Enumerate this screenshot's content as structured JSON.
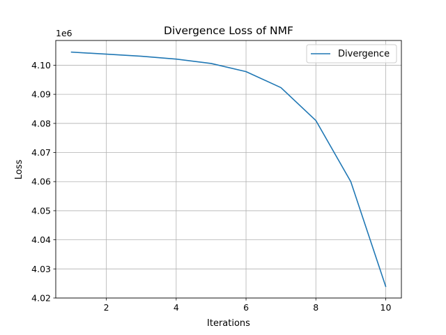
{
  "chart_data": {
    "type": "line",
    "title": "Divergence Loss of NMF",
    "xlabel": "Iterations",
    "ylabel": "Loss",
    "y_offset_label": "1e6",
    "y_scale_factor": 1000000,
    "x": [
      1,
      2,
      3,
      4,
      5,
      6,
      7,
      8,
      9,
      10
    ],
    "series": [
      {
        "name": "Divergence",
        "color": "#1f77b4",
        "values": [
          4104500,
          4103800,
          4103100,
          4102100,
          4100600,
          4097800,
          4092300,
          4081000,
          4060000,
          4024000
        ]
      }
    ],
    "xlim": [
      0.55,
      10.45
    ],
    "ylim": [
      4020000,
      4108500
    ],
    "x_ticks": [
      2,
      4,
      6,
      8,
      10
    ],
    "x_tick_labels": [
      "2",
      "4",
      "6",
      "8",
      "10"
    ],
    "y_ticks": [
      4020000,
      4030000,
      4040000,
      4050000,
      4060000,
      4070000,
      4080000,
      4090000,
      4100000
    ],
    "y_tick_labels": [
      "4.02",
      "4.03",
      "4.04",
      "4.05",
      "4.06",
      "4.07",
      "4.08",
      "4.09",
      "4.10"
    ],
    "grid": true,
    "legend_position": "top-right"
  }
}
